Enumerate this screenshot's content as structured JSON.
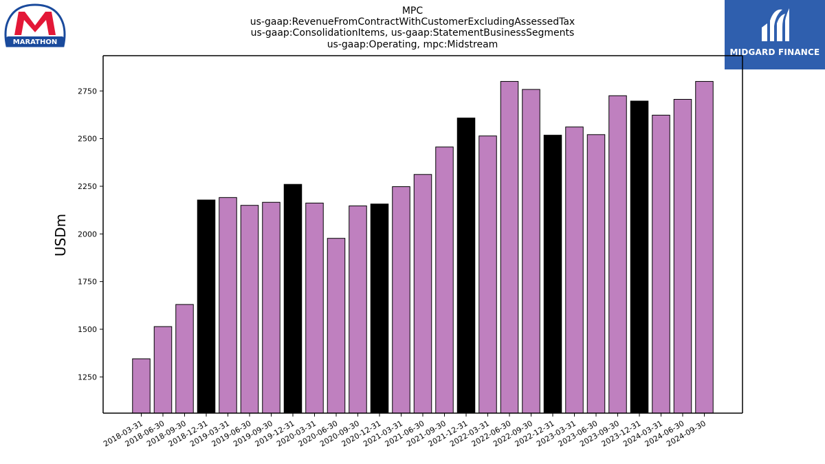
{
  "header": {
    "company": "MPC",
    "title_lines": [
      "MPC",
      "us-gaap:RevenueFromContractWithCustomerExcludingAssessedTax",
      "us-gaap:ConsolidationItems, us-gaap:StatementBusinessSegments",
      "us-gaap:Operating, mpc:Midstream"
    ]
  },
  "logos": {
    "left": {
      "name": "MARATHON",
      "mark": "M",
      "colors": {
        "red": "#e31837",
        "blue": "#1a4a9c"
      }
    },
    "right": {
      "name": "MIDGARD FINANCE",
      "color": "#2f5fae"
    }
  },
  "chart_data": {
    "type": "bar",
    "ylabel": "USDm",
    "xlabel": "",
    "ylim": [
      1060,
      2935
    ],
    "yticks": [
      1250,
      1500,
      1750,
      2000,
      2250,
      2500,
      2750
    ],
    "colors": {
      "quarter": "#bf80bf",
      "year_end": "#000000"
    },
    "categories": [
      "2018-03-31",
      "2018-06-30",
      "2018-09-30",
      "2018-12-31",
      "2019-03-31",
      "2019-06-30",
      "2019-09-30",
      "2019-12-31",
      "2020-03-31",
      "2020-06-30",
      "2020-09-30",
      "2020-12-31",
      "2021-03-31",
      "2021-06-30",
      "2021-09-30",
      "2021-12-31",
      "2022-03-31",
      "2022-06-30",
      "2022-09-30",
      "2022-12-31",
      "2023-03-31",
      "2023-06-30",
      "2023-09-30",
      "2023-12-31",
      "2024-03-31",
      "2024-06-30",
      "2024-09-30"
    ],
    "values": [
      1345,
      1514,
      1630,
      2178,
      2191,
      2150,
      2166,
      2260,
      2162,
      1977,
      2147,
      2157,
      2248,
      2312,
      2456,
      2608,
      2514,
      2800,
      2758,
      2518,
      2561,
      2521,
      2725,
      2697,
      2623,
      2706,
      2800
    ],
    "year_end": [
      false,
      false,
      false,
      true,
      false,
      false,
      false,
      true,
      false,
      false,
      false,
      true,
      false,
      false,
      false,
      true,
      false,
      false,
      false,
      true,
      false,
      false,
      false,
      true,
      false,
      false,
      false
    ]
  }
}
